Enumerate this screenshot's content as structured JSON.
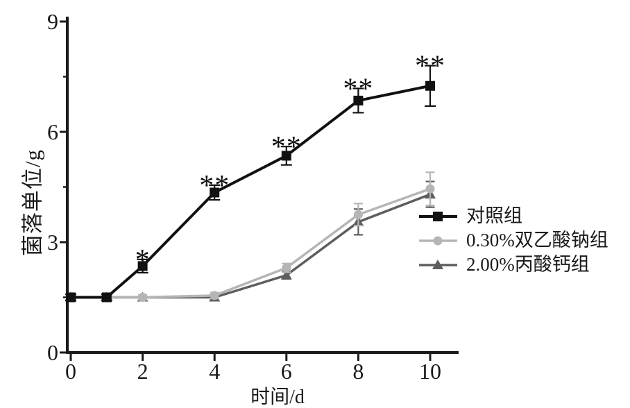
{
  "chart_data": {
    "type": "line",
    "title": "",
    "xlabel": "时间/d",
    "ylabel": "菌落单位/g",
    "xlim": [
      0,
      10.8
    ],
    "ylim": [
      0,
      9
    ],
    "x_ticks": [
      0,
      2,
      4,
      6,
      8,
      10
    ],
    "y_ticks": [
      0,
      3,
      6,
      9
    ],
    "y_minor_ticks": [
      1.5,
      4.5,
      7.5
    ],
    "grid": "off",
    "legend_position": "right-middle",
    "x": [
      0,
      1,
      2,
      4,
      6,
      8,
      10
    ],
    "series": [
      {
        "name": "对照组",
        "marker": "square",
        "color": "#111111",
        "values": [
          1.5,
          1.5,
          2.35,
          4.35,
          5.35,
          6.85,
          7.25
        ],
        "errors": [
          0.08,
          0.08,
          0.18,
          0.2,
          0.25,
          0.33,
          0.55
        ],
        "annotations": [
          "",
          "",
          "*",
          "**",
          "**",
          "**",
          "**"
        ]
      },
      {
        "name": "0.30%双乙酸钠组",
        "marker": "circle",
        "color": "#b5b5b5",
        "values": [
          1.5,
          1.5,
          1.5,
          1.55,
          2.3,
          3.75,
          4.45
        ],
        "errors": [
          0,
          0,
          0.07,
          0.08,
          0.12,
          0.3,
          0.45
        ],
        "annotations": [
          "",
          "",
          "",
          "",
          "",
          "",
          ""
        ]
      },
      {
        "name": "2.00%丙酸钙组",
        "marker": "triangle",
        "color": "#5e5e5e",
        "values": [
          1.5,
          1.5,
          1.5,
          1.5,
          2.1,
          3.55,
          4.3
        ],
        "errors": [
          0,
          0,
          0,
          0.07,
          0.1,
          0.35,
          0.35
        ],
        "annotations": [
          "",
          "",
          "",
          "",
          "",
          "",
          ""
        ]
      }
    ],
    "colors": {
      "axis": "#1a1a1a",
      "text": "#1a1a1a",
      "background": "#ffffff"
    }
  }
}
